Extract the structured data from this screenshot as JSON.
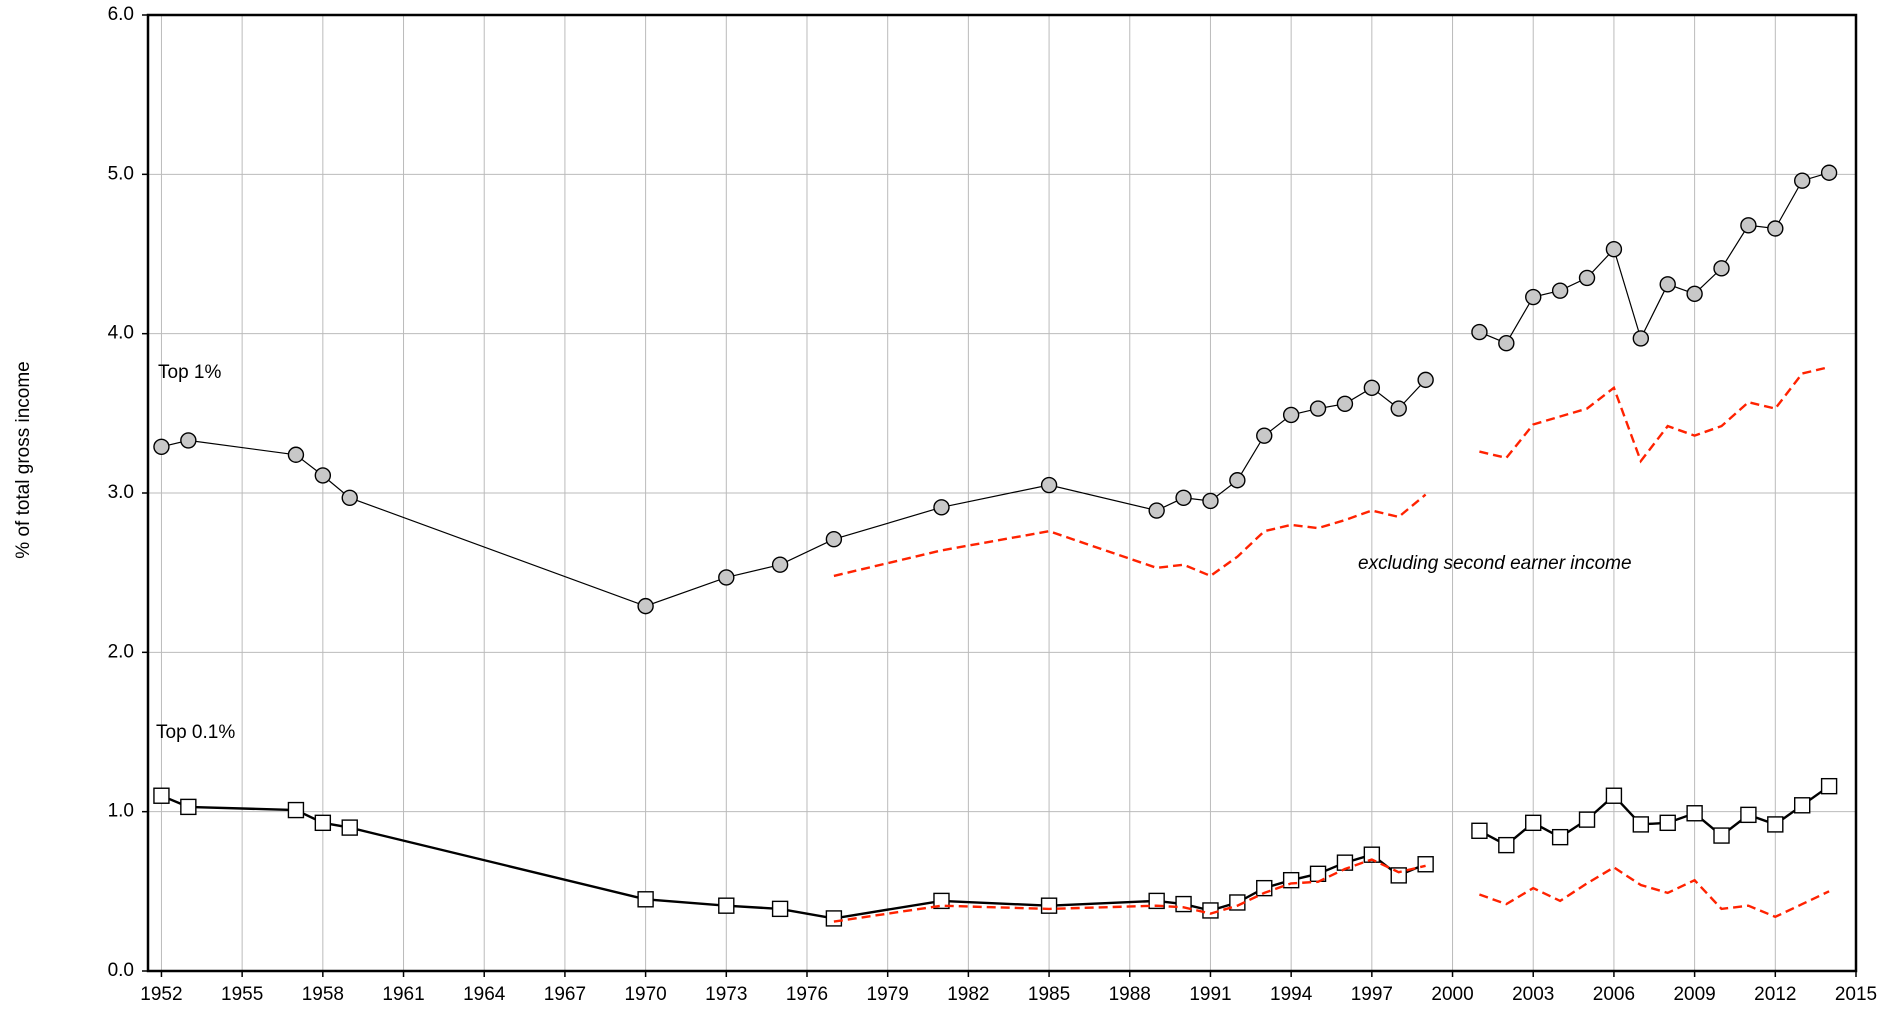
{
  "chart_data": {
    "type": "line",
    "y_label": "% of total gross income",
    "xlim": [
      1951.5,
      2015
    ],
    "ylim": [
      0,
      6
    ],
    "xticks": [
      1952,
      1955,
      1958,
      1961,
      1964,
      1967,
      1970,
      1973,
      1976,
      1979,
      1982,
      1985,
      1988,
      1991,
      1994,
      1997,
      2000,
      2003,
      2006,
      2009,
      2012,
      2015
    ],
    "yticks": [
      {
        "value": 0,
        "label": "0.0"
      },
      {
        "value": 1,
        "label": "1.0"
      },
      {
        "value": 2,
        "label": "2.0"
      },
      {
        "value": 3,
        "label": "3.0"
      },
      {
        "value": 4,
        "label": "4.0"
      },
      {
        "value": 5,
        "label": "5.0"
      },
      {
        "value": 6,
        "label": "6.0"
      }
    ],
    "grid": true,
    "series": [
      {
        "name": "Top 1%",
        "color": "#000000",
        "marker": "circle",
        "x": [
          1952,
          1953,
          1957,
          1958,
          1959,
          1970,
          1973,
          1975,
          1977,
          1981,
          1985,
          1989,
          1990,
          1991,
          1992,
          1993,
          1994,
          1995,
          1996,
          1997,
          1998,
          1999,
          2000,
          2001,
          2002,
          2003,
          2004,
          2005,
          2006,
          2007,
          2008,
          2009,
          2010,
          2011,
          2012,
          2013,
          2014
        ],
        "values": [
          3.29,
          3.33,
          3.24,
          3.11,
          2.97,
          2.29,
          2.47,
          2.55,
          2.71,
          2.91,
          3.05,
          2.89,
          2.97,
          2.95,
          3.08,
          3.36,
          3.49,
          3.53,
          3.56,
          3.66,
          3.53,
          3.71,
          null,
          4.01,
          3.94,
          4.23,
          4.27,
          4.35,
          4.53,
          3.97,
          4.31,
          4.25,
          4.41,
          4.68,
          4.66,
          4.96,
          5.01
        ]
      },
      {
        "name": "Top 0.1%",
        "color": "#000000",
        "marker": "square",
        "x": [
          1952,
          1953,
          1957,
          1958,
          1959,
          1970,
          1973,
          1975,
          1977,
          1981,
          1985,
          1989,
          1990,
          1991,
          1992,
          1993,
          1994,
          1995,
          1996,
          1997,
          1998,
          1999,
          2000,
          2001,
          2002,
          2003,
          2004,
          2005,
          2006,
          2007,
          2008,
          2009,
          2010,
          2011,
          2012,
          2013,
          2014
        ],
        "values": [
          1.1,
          1.03,
          1.01,
          0.93,
          0.9,
          0.45,
          0.41,
          0.39,
          0.33,
          0.44,
          0.41,
          0.44,
          0.42,
          0.38,
          0.43,
          0.52,
          0.57,
          0.61,
          0.68,
          0.73,
          0.6,
          0.67,
          null,
          0.88,
          0.79,
          0.93,
          0.84,
          0.95,
          1.1,
          0.92,
          0.93,
          0.99,
          0.85,
          0.98,
          0.92,
          1.04,
          1.16
        ]
      },
      {
        "name": "excluding second earner income",
        "color": "#ff2200",
        "dashed": true,
        "x": [
          1977,
          1981,
          1985,
          1989,
          1990,
          1991,
          1992,
          1993,
          1994,
          1995,
          1996,
          1997,
          1998,
          1999,
          2000,
          2001,
          2002,
          2003,
          2004,
          2005,
          2006,
          2007,
          2008,
          2009,
          2010,
          2011,
          2012,
          2013,
          2014
        ],
        "values": [
          2.48,
          2.64,
          2.76,
          2.53,
          2.55,
          2.48,
          2.6,
          2.76,
          2.8,
          2.78,
          2.83,
          2.89,
          2.85,
          2.99,
          null,
          3.26,
          3.22,
          3.43,
          3.48,
          3.53,
          3.66,
          3.2,
          3.42,
          3.36,
          3.42,
          3.57,
          3.53,
          3.75,
          3.79
        ]
      },
      {
        "color": "#ff2200",
        "dashed": true,
        "x": [
          1977,
          1981,
          1985,
          1989,
          1990,
          1991,
          1992,
          1993,
          1994,
          1995,
          1996,
          1997,
          1998,
          1999,
          2000,
          2001,
          2002,
          2003,
          2004,
          2005,
          2006,
          2007,
          2008,
          2009,
          2010,
          2011,
          2012,
          2013,
          2014
        ],
        "values": [
          0.31,
          0.41,
          0.39,
          0.41,
          0.4,
          0.36,
          0.41,
          0.49,
          0.55,
          0.56,
          0.64,
          0.7,
          0.62,
          0.66,
          null,
          0.48,
          0.42,
          0.52,
          0.44,
          0.55,
          0.65,
          0.54,
          0.49,
          0.57,
          0.39,
          0.41,
          0.34,
          0.42,
          0.5
        ]
      }
    ]
  }
}
